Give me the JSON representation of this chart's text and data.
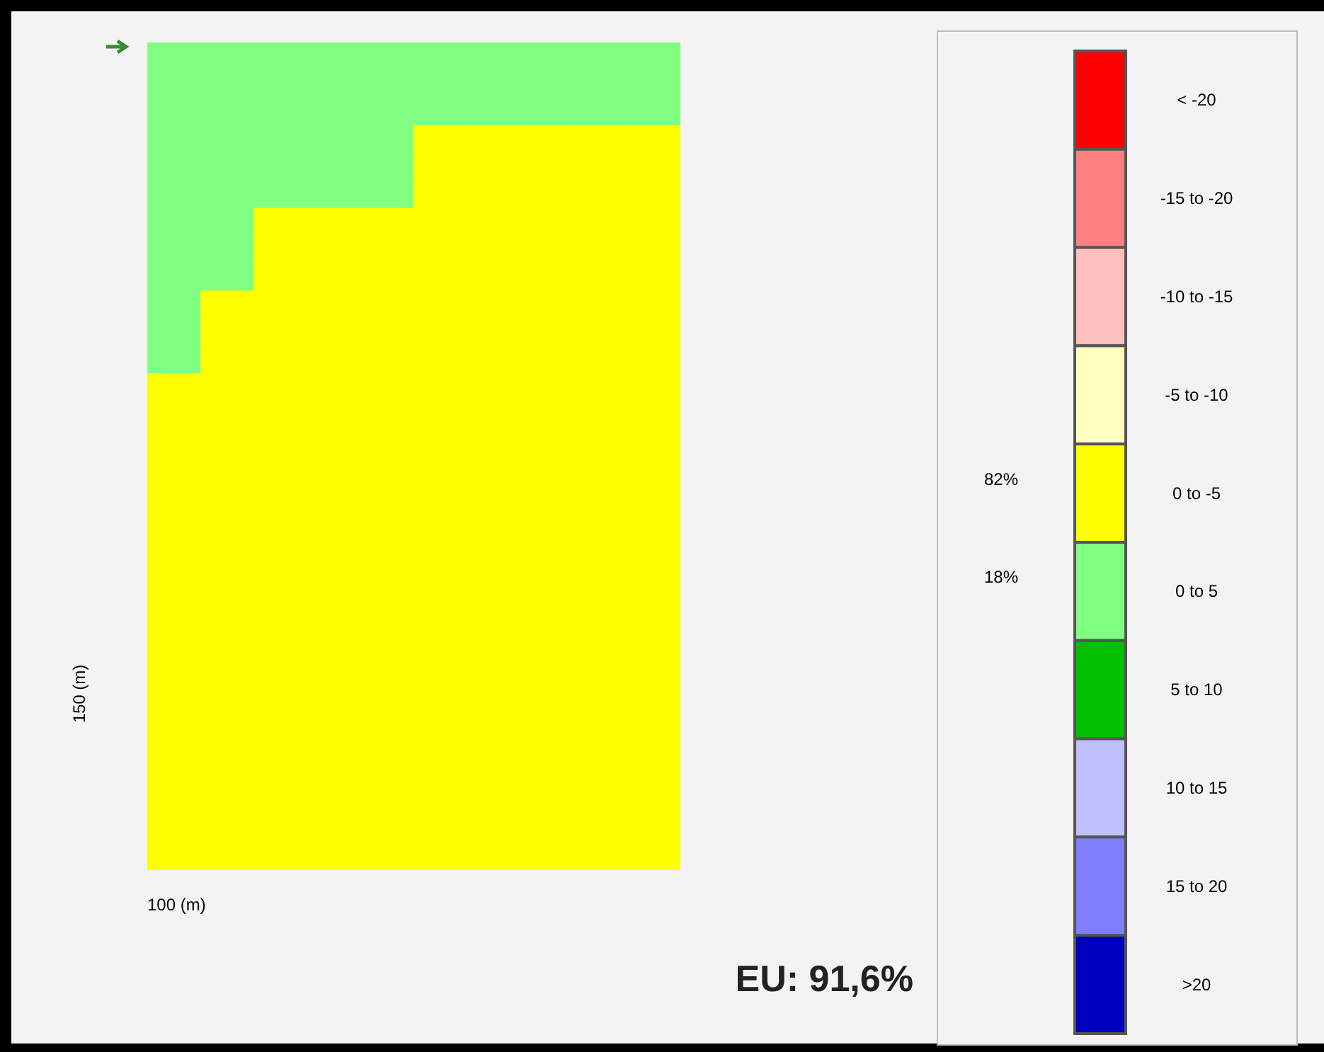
{
  "chart_data": {
    "type": "heatmap",
    "xlabel": "100 (m)",
    "ylabel": "150 (m)",
    "categories": [
      null,
      null,
      null,
      null,
      null,
      null,
      null,
      null,
      null,
      null
    ],
    "y_categories": [
      null,
      null,
      null,
      null,
      null,
      null,
      null,
      null,
      null,
      null,
      null,
      null,
      null,
      null,
      null,
      null,
      null,
      null,
      null,
      null,
      null,
      null,
      null,
      null,
      null,
      null,
      null,
      null,
      null,
      null
    ],
    "cells": [
      [
        2.5,
        2.5,
        2.5,
        2.5,
        2.5,
        2.5,
        2.5,
        2.5,
        2.5,
        2.5
      ],
      [
        2.5,
        2.5,
        2.5,
        2.5,
        2.5,
        2.5,
        2.5,
        2.5,
        2.5,
        2.5
      ],
      [
        2.5,
        2.5,
        2.5,
        2.5,
        2.5,
        2.5,
        2.5,
        2.5,
        2.5,
        2.5
      ],
      [
        2.5,
        2.5,
        2.5,
        2.5,
        2.5,
        -2.5,
        -2.5,
        -2.5,
        -2.5,
        -2.5
      ],
      [
        2.5,
        2.5,
        2.5,
        2.5,
        2.5,
        -2.5,
        -2.5,
        -2.5,
        -2.5,
        -2.5
      ],
      [
        2.5,
        2.5,
        2.5,
        2.5,
        2.5,
        -2.5,
        -2.5,
        -2.5,
        -2.5,
        -2.5
      ],
      [
        2.5,
        2.5,
        -2.5,
        -2.5,
        -2.5,
        -2.5,
        -2.5,
        -2.5,
        -2.5,
        -2.5
      ],
      [
        2.5,
        2.5,
        -2.5,
        -2.5,
        -2.5,
        -2.5,
        -2.5,
        -2.5,
        -2.5,
        -2.5
      ],
      [
        2.5,
        2.5,
        -2.5,
        -2.5,
        -2.5,
        -2.5,
        -2.5,
        -2.5,
        -2.5,
        -2.5
      ],
      [
        2.5,
        -2.5,
        -2.5,
        -2.5,
        -2.5,
        -2.5,
        -2.5,
        -2.5,
        -2.5,
        -2.5
      ],
      [
        2.5,
        -2.5,
        -2.5,
        -2.5,
        -2.5,
        -2.5,
        -2.5,
        -2.5,
        -2.5,
        -2.5
      ],
      [
        2.5,
        -2.5,
        -2.5,
        -2.5,
        -2.5,
        -2.5,
        -2.5,
        -2.5,
        -2.5,
        -2.5
      ],
      [
        -2.5,
        -2.5,
        -2.5,
        -2.5,
        -2.5,
        -2.5,
        -2.5,
        -2.5,
        -2.5,
        -2.5
      ],
      [
        -2.5,
        -2.5,
        -2.5,
        -2.5,
        -2.5,
        -2.5,
        -2.5,
        -2.5,
        -2.5,
        -2.5
      ],
      [
        -2.5,
        -2.5,
        -2.5,
        -2.5,
        -2.5,
        -2.5,
        -2.5,
        -2.5,
        -2.5,
        -2.5
      ],
      [
        -2.5,
        -2.5,
        -2.5,
        -2.5,
        -2.5,
        -2.5,
        -2.5,
        -2.5,
        -2.5,
        -2.5
      ],
      [
        -2.5,
        -2.5,
        -2.5,
        -2.5,
        -2.5,
        -2.5,
        -2.5,
        -2.5,
        -2.5,
        -2.5
      ],
      [
        -2.5,
        -2.5,
        -2.5,
        -2.5,
        -2.5,
        -2.5,
        -2.5,
        -2.5,
        -2.5,
        -2.5
      ],
      [
        -2.5,
        -2.5,
        -2.5,
        -2.5,
        -2.5,
        -2.5,
        -2.5,
        -2.5,
        -2.5,
        -2.5
      ],
      [
        -2.5,
        -2.5,
        -2.5,
        -2.5,
        -2.5,
        -2.5,
        -2.5,
        -2.5,
        -2.5,
        -2.5
      ],
      [
        -2.5,
        -2.5,
        -2.5,
        -2.5,
        -2.5,
        -2.5,
        -2.5,
        -2.5,
        -2.5,
        -2.5
      ],
      [
        -2.5,
        -2.5,
        -2.5,
        -2.5,
        -2.5,
        -2.5,
        -2.5,
        -2.5,
        -2.5,
        -2.5
      ],
      [
        -2.5,
        -2.5,
        -2.5,
        -2.5,
        -2.5,
        -2.5,
        -2.5,
        -2.5,
        -2.5,
        -2.5
      ],
      [
        -2.5,
        -2.5,
        -2.5,
        -2.5,
        -2.5,
        -2.5,
        -2.5,
        -2.5,
        -2.5,
        -2.5
      ],
      [
        -2.5,
        -2.5,
        -2.5,
        -2.5,
        -2.5,
        -2.5,
        -2.5,
        -2.5,
        -2.5,
        -2.5
      ],
      [
        -2.5,
        -2.5,
        -2.5,
        -2.5,
        -2.5,
        -2.5,
        -2.5,
        -2.5,
        -2.5,
        -2.5
      ],
      [
        -2.5,
        -2.5,
        -2.5,
        -2.5,
        -2.5,
        -2.5,
        -2.5,
        -2.5,
        -2.5,
        -2.5
      ],
      [
        -2.5,
        -2.5,
        -2.5,
        -2.5,
        -2.5,
        -2.5,
        -2.5,
        -2.5,
        -2.5,
        -2.5
      ],
      [
        -2.5,
        -2.5,
        -2.5,
        -2.5,
        -2.5,
        -2.5,
        -2.5,
        -2.5,
        -2.5,
        -2.5
      ],
      [
        -2.5,
        -2.5,
        -2.5,
        -2.5,
        -2.5,
        -2.5,
        -2.5,
        -2.5,
        -2.5,
        -2.5
      ]
    ],
    "clim": [
      25,
      -25
    ],
    "cticks": [
      {
        "value": -22.5,
        "label": "< -20"
      },
      {
        "value": -17.5,
        "label": "-15 to -20"
      },
      {
        "value": -12.5,
        "label": "-10 to -15"
      },
      {
        "value": -7.5,
        "label": "-5 to -10"
      },
      {
        "value": -2.5,
        "label": "0 to -5"
      },
      {
        "value": 2.5,
        "label": "0 to 5"
      },
      {
        "value": 7.5,
        "label": "5 to 10"
      },
      {
        "value": 12.5,
        "label": "10 to 15"
      },
      {
        "value": 17.5,
        "label": "15 to 20"
      },
      {
        "value": 22.5,
        "label": ">20"
      }
    ],
    "colors": [
      "#ff0000",
      "#ff8080",
      "#ffc0c0",
      "#ffffc0",
      "#ffff00",
      "#80ff80",
      "#00c000",
      "#c0c0ff",
      "#8080ff",
      "#0000c0"
    ],
    "annotations": [
      "82%",
      "18%",
      "EU: 91,6%"
    ]
  }
}
